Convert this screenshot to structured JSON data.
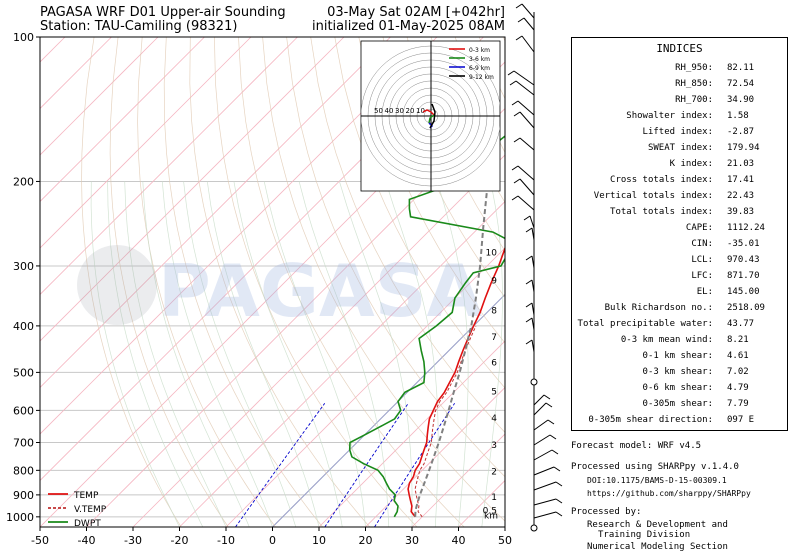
{
  "header": {
    "title_left": "PAGASA WRF D01 Upper-air Sounding",
    "station": "Station: TAU-Camiling (98321)",
    "valid": "03-May Sat 02AM [+042hr]",
    "init": "initialized 01-May-2025 08AM"
  },
  "watermark": "PAGASA",
  "colors": {
    "temp": "#e01010",
    "vtemp": "#c03030",
    "dwpt": "#1a8a1a",
    "parcel": "#808080",
    "mixing": "#0000cc",
    "isotherm_pink": "#f5b6c2",
    "dry_adiabat": "#e0c8b0",
    "moist_adiabat": "#c8dcc8",
    "background": "#ffffff"
  },
  "chart_data": {
    "type": "line",
    "ylim": [
      1000,
      100
    ],
    "xlim": [
      -50,
      50
    ],
    "y_scale": "log-pressure",
    "x_ticks": [
      "-50",
      "-40",
      "-30",
      "-20",
      "-10",
      "0",
      "10",
      "20",
      "30",
      "40",
      "50"
    ],
    "y_ticks": [
      "100",
      "200",
      "300",
      "400",
      "500",
      "600",
      "700",
      "800",
      "900",
      "1000"
    ],
    "legend_position": "lower-left",
    "series": [
      {
        "name": "TEMP",
        "style": "solid",
        "points": [
          [
            28.5,
            1000
          ],
          [
            26.5,
            975
          ],
          [
            25.5,
            950
          ],
          [
            24,
            925
          ],
          [
            22.5,
            900
          ],
          [
            21,
            875
          ],
          [
            20,
            850
          ],
          [
            19.5,
            825
          ],
          [
            18.5,
            800
          ],
          [
            18,
            775
          ],
          [
            17,
            750
          ],
          [
            16,
            725
          ],
          [
            15,
            700
          ],
          [
            13.5,
            675
          ],
          [
            12,
            650
          ],
          [
            10.5,
            625
          ],
          [
            9.5,
            600
          ],
          [
            8.5,
            575
          ],
          [
            8,
            550
          ],
          [
            7,
            525
          ],
          [
            6,
            500
          ],
          [
            4.5,
            475
          ],
          [
            3,
            450
          ],
          [
            1.5,
            425
          ],
          [
            0,
            400
          ],
          [
            -1.5,
            375
          ],
          [
            -3.5,
            350
          ],
          [
            -5.5,
            325
          ],
          [
            -7.5,
            300
          ],
          [
            -10,
            275
          ],
          [
            -12.5,
            250
          ],
          [
            -15.5,
            225
          ],
          [
            -18,
            200
          ],
          [
            -21.5,
            175
          ],
          [
            -24.5,
            150
          ],
          [
            -26,
            140
          ],
          [
            -27,
            130
          ],
          [
            -27.5,
            120
          ],
          [
            -28,
            110
          ],
          [
            -25.5,
            100
          ]
        ]
      },
      {
        "name": "V.TEMP",
        "style": "dashed",
        "points": [
          [
            30,
            1000
          ],
          [
            28,
            975
          ],
          [
            27,
            950
          ],
          [
            25.5,
            925
          ],
          [
            24,
            900
          ],
          [
            22.5,
            875
          ],
          [
            21.5,
            850
          ],
          [
            20.5,
            825
          ],
          [
            19.5,
            800
          ],
          [
            19,
            775
          ],
          [
            18,
            750
          ],
          [
            17,
            725
          ],
          [
            16,
            700
          ],
          [
            14.5,
            675
          ],
          [
            13,
            650
          ],
          [
            11.5,
            625
          ],
          [
            10,
            600
          ],
          [
            9,
            575
          ],
          [
            8.5,
            550
          ],
          [
            7.5,
            525
          ],
          [
            6.5,
            500
          ],
          [
            5,
            475
          ],
          [
            3.5,
            450
          ],
          [
            2,
            425
          ],
          [
            0.5,
            400
          ]
        ]
      },
      {
        "name": "DWPT",
        "style": "solid",
        "points": [
          [
            24,
            1000
          ],
          [
            23.5,
            975
          ],
          [
            22.5,
            950
          ],
          [
            20.5,
            925
          ],
          [
            19.5,
            900
          ],
          [
            17,
            875
          ],
          [
            15,
            850
          ],
          [
            13,
            825
          ],
          [
            10.5,
            800
          ],
          [
            6,
            775
          ],
          [
            2,
            750
          ],
          [
            0,
            725
          ],
          [
            -1.5,
            700
          ],
          [
            0,
            675
          ],
          [
            1.5,
            650
          ],
          [
            3,
            625
          ],
          [
            2.5,
            600
          ],
          [
            0,
            575
          ],
          [
            -0.5,
            550
          ],
          [
            1.5,
            525
          ],
          [
            -0.5,
            500
          ],
          [
            -3,
            475
          ],
          [
            -6,
            450
          ],
          [
            -9,
            425
          ],
          [
            -8,
            400
          ],
          [
            -7.5,
            375
          ],
          [
            -10,
            350
          ],
          [
            -11,
            325
          ],
          [
            -11.5,
            310
          ],
          [
            -7,
            300
          ],
          [
            -8,
            285
          ],
          [
            -11,
            265
          ],
          [
            -16,
            255
          ],
          [
            -37,
            237
          ],
          [
            -39,
            228
          ],
          [
            -41,
            218
          ],
          [
            -36,
            205
          ],
          [
            -36.5,
            195
          ],
          [
            -37,
            185
          ],
          [
            -35,
            175
          ],
          [
            -34,
            160
          ],
          [
            -34,
            150
          ],
          [
            -35,
            140
          ],
          [
            -37,
            128
          ],
          [
            -38,
            118
          ],
          [
            -38,
            110
          ],
          [
            -37,
            100
          ]
        ]
      },
      {
        "name": "parcel",
        "style": "dashed",
        "points": [
          [
            28.5,
            1000
          ],
          [
            27.2,
            970
          ],
          [
            26.5,
            950
          ],
          [
            24.8,
            900
          ],
          [
            23.2,
            850
          ],
          [
            21.5,
            800
          ],
          [
            19.6,
            750
          ],
          [
            17.6,
            700
          ],
          [
            15.3,
            650
          ],
          [
            12.8,
            600
          ],
          [
            10,
            550
          ],
          [
            7,
            500
          ],
          [
            3.5,
            450
          ],
          [
            -0.5,
            400
          ],
          [
            -5.5,
            350
          ],
          [
            -11.5,
            300
          ],
          [
            -19,
            250
          ],
          [
            -28,
            200
          ],
          [
            -37,
            165
          ],
          [
            -44,
            145
          ],
          [
            -47,
            130
          ]
        ]
      }
    ],
    "height_labels_km": [
      {
        "label": "0.5",
        "p": 965
      },
      {
        "label": "1",
        "p": 905
      },
      {
        "label": "2",
        "p": 800
      },
      {
        "label": "3",
        "p": 705
      },
      {
        "label": "4",
        "p": 620
      },
      {
        "label": "5",
        "p": 545
      },
      {
        "label": "6",
        "p": 475
      },
      {
        "label": "7",
        "p": 420
      },
      {
        "label": "8",
        "p": 370
      },
      {
        "label": "9",
        "p": 320
      },
      {
        "label": "10",
        "p": 280
      }
    ],
    "km_unit": "km",
    "hodograph": {
      "ring_labels": [
        "50",
        "40",
        "30",
        "20",
        "10"
      ],
      "legend": [
        {
          "name": "0-3 km",
          "color": "#e01010"
        },
        {
          "name": "3-6 km",
          "color": "#1a8a1a"
        },
        {
          "name": "6-9 km",
          "color": "#1010d0"
        },
        {
          "name": "9-12 km",
          "color": "#000000"
        }
      ]
    }
  },
  "indices": {
    "title": "INDICES",
    "rows": [
      {
        "label": "RH_950:",
        "value": "82.11"
      },
      {
        "label": "RH_850:",
        "value": "72.54"
      },
      {
        "label": "RH_700:",
        "value": "34.90"
      },
      {
        "label": "Showalter index:",
        "value": "1.58"
      },
      {
        "label": "Lifted index:",
        "value": "-2.87"
      },
      {
        "label": "SWEAT index:",
        "value": "179.94"
      },
      {
        "label": "K index:",
        "value": "21.03"
      },
      {
        "label": "Cross totals index:",
        "value": "17.41"
      },
      {
        "label": "Vertical totals index:",
        "value": "22.43"
      },
      {
        "label": "Total totals index:",
        "value": "39.83"
      },
      {
        "label": "CAPE:",
        "value": "1112.24"
      },
      {
        "label": "CIN:",
        "value": "-35.01"
      },
      {
        "label": "LCL:",
        "value": "970.43"
      },
      {
        "label": "LFC:",
        "value": "871.70"
      },
      {
        "label": "EL:",
        "value": "145.00"
      },
      {
        "label": "Bulk Richardson no.:",
        "value": "2518.09"
      },
      {
        "label": "Total precipitable water:",
        "value": "43.77"
      },
      {
        "label": "0-3 km mean wind:",
        "value": "8.21"
      },
      {
        "label": "0-1 km shear:",
        "value": "4.61"
      },
      {
        "label": "0-3 km shear:",
        "value": "7.02"
      },
      {
        "label": "0-6 km shear:",
        "value": "4.79"
      },
      {
        "label": "0-305m shear:",
        "value": "7.79"
      },
      {
        "label": "0-305m shear direction:",
        "value": "097 E"
      }
    ]
  },
  "footer": {
    "forecast_model": "Forecast model: WRF v4.5",
    "processed_using": "Processed using SHARPpy v.1.4.0",
    "doi": "DOI:10.1175/BAMS-D-15-00309.1",
    "github": "https://github.com/sharppy/SHARPpy",
    "processed_by": "Processed by:",
    "division_line1": "Research & Development and",
    "division_line2": "Training Division",
    "section": "Numerical Modeling Section"
  }
}
